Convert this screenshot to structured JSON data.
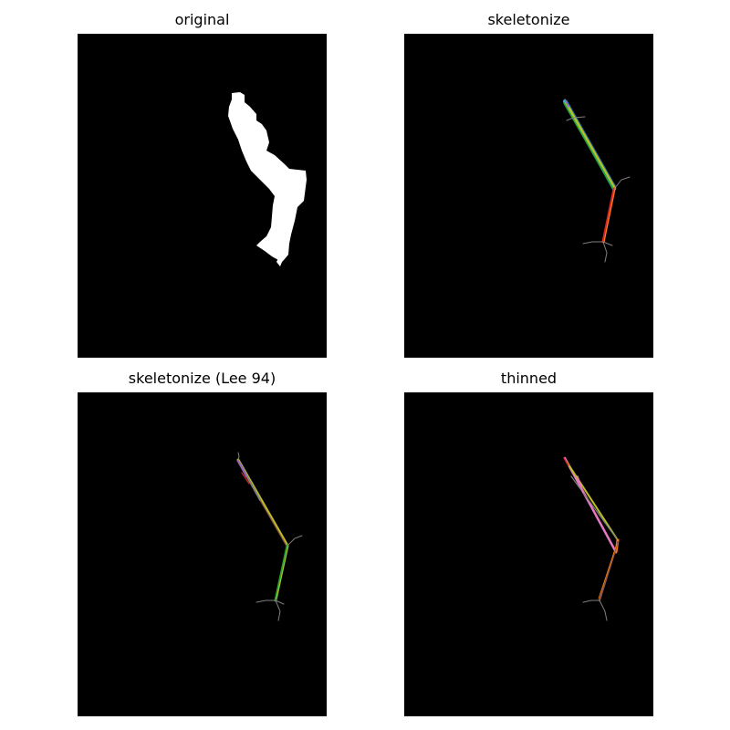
{
  "figure": {
    "panels": [
      {
        "id": "original",
        "title": "original"
      },
      {
        "id": "skeletonize",
        "title": "skeletonize"
      },
      {
        "id": "skeletonize-lee",
        "title": "skeletonize (Lee 94)"
      },
      {
        "id": "thinned",
        "title": "thinned"
      }
    ],
    "colors": {
      "background": "#000000",
      "shape": "#ffffff",
      "branch_gray": "#7f7f7f",
      "palette": [
        "#1f77b4",
        "#ff7f0e",
        "#2ca02c",
        "#d62728",
        "#9467bd",
        "#8c564b",
        "#e377c2",
        "#bcbd22",
        "#17becf"
      ]
    }
  }
}
